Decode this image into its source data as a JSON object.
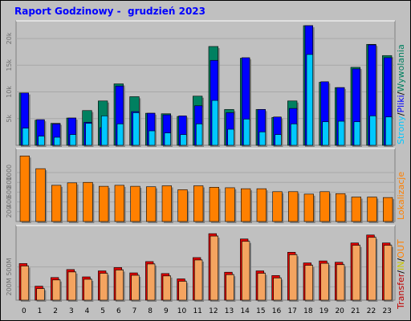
{
  "title": "Raport Godzinowy -  grudzień 2023",
  "colors": {
    "strony": "#00c8ff",
    "pliki": "#0000ff",
    "wywolania": "#008060",
    "lokalizacje": "#ff8000",
    "transfer_in": "#c8c800",
    "transfer_out": "#ff8000",
    "transfer": "#c00000"
  },
  "chart_data": [
    {
      "type": "bar",
      "x": [
        "0",
        "1",
        "2",
        "3",
        "4",
        "5",
        "6",
        "7",
        "8",
        "9",
        "10",
        "11",
        "12",
        "13",
        "14",
        "15",
        "16",
        "17",
        "18",
        "19",
        "20",
        "21",
        "22",
        "23"
      ],
      "series": [
        {
          "name": "Wywolania",
          "values": [
            9800,
            4700,
            4100,
            5100,
            6500,
            8300,
            11500,
            9100,
            6000,
            5900,
            5400,
            9200,
            18500,
            6700,
            16300,
            6700,
            5200,
            8300,
            22400,
            11800,
            10800,
            14600,
            18900,
            16800
          ]
        },
        {
          "name": "Pliki",
          "values": [
            9800,
            4800,
            4000,
            5100,
            4300,
            3300,
            11100,
            6300,
            6000,
            5700,
            5500,
            7400,
            15900,
            6100,
            16400,
            6700,
            5300,
            6900,
            22400,
            11900,
            10800,
            14300,
            18800,
            16400
          ]
        },
        {
          "name": "Strony",
          "values": [
            3200,
            1700,
            1500,
            2000,
            4100,
            5500,
            4000,
            6100,
            2700,
            2300,
            2000,
            4000,
            8400,
            3000,
            4900,
            2500,
            2000,
            4000,
            17000,
            4400,
            4500,
            4400,
            5500,
            5300
          ]
        }
      ],
      "yticks": [
        "5k",
        "10k",
        "15k",
        "20k"
      ],
      "ylim": [
        0,
        23000
      ],
      "legend": [
        "Strony",
        "/",
        "Pliki",
        "/",
        "Wywolania"
      ]
    },
    {
      "type": "bar",
      "x": [
        "0",
        "1",
        "2",
        "3",
        "4",
        "5",
        "6",
        "7",
        "8",
        "9",
        "10",
        "11",
        "12",
        "13",
        "14",
        "15",
        "16",
        "17",
        "18",
        "19",
        "20",
        "21",
        "22",
        "23"
      ],
      "series": [
        {
          "name": "Lokalizacje",
          "values": [
            1340,
            1080,
            740,
            790,
            800,
            720,
            740,
            720,
            710,
            730,
            650,
            730,
            700,
            690,
            670,
            670,
            610,
            610,
            560,
            610,
            570,
            500,
            500,
            490
          ]
        }
      ],
      "yticks": [
        "200",
        "400",
        "600",
        "800",
        "1000"
      ],
      "ylim": [
        0,
        1460
      ],
      "legend": [
        "Lokalizacje"
      ]
    },
    {
      "type": "bar",
      "x": [
        "0",
        "1",
        "2",
        "3",
        "4",
        "5",
        "6",
        "7",
        "8",
        "9",
        "10",
        "11",
        "12",
        "13",
        "14",
        "15",
        "16",
        "17",
        "18",
        "19",
        "20",
        "21",
        "22",
        "23"
      ],
      "series": [
        {
          "name": "Transfer",
          "values": [
            550,
            210,
            340,
            460,
            350,
            440,
            490,
            410,
            580,
            400,
            320,
            640,
            1000,
            420,
            920,
            440,
            370,
            720,
            560,
            590,
            570,
            860,
            980,
            860
          ]
        }
      ],
      "yticks": [
        "200M",
        "500M"
      ],
      "ylim": [
        0,
        1050
      ],
      "legend": [
        "Transfer",
        "/",
        "IN",
        "/",
        "OUT"
      ]
    }
  ]
}
